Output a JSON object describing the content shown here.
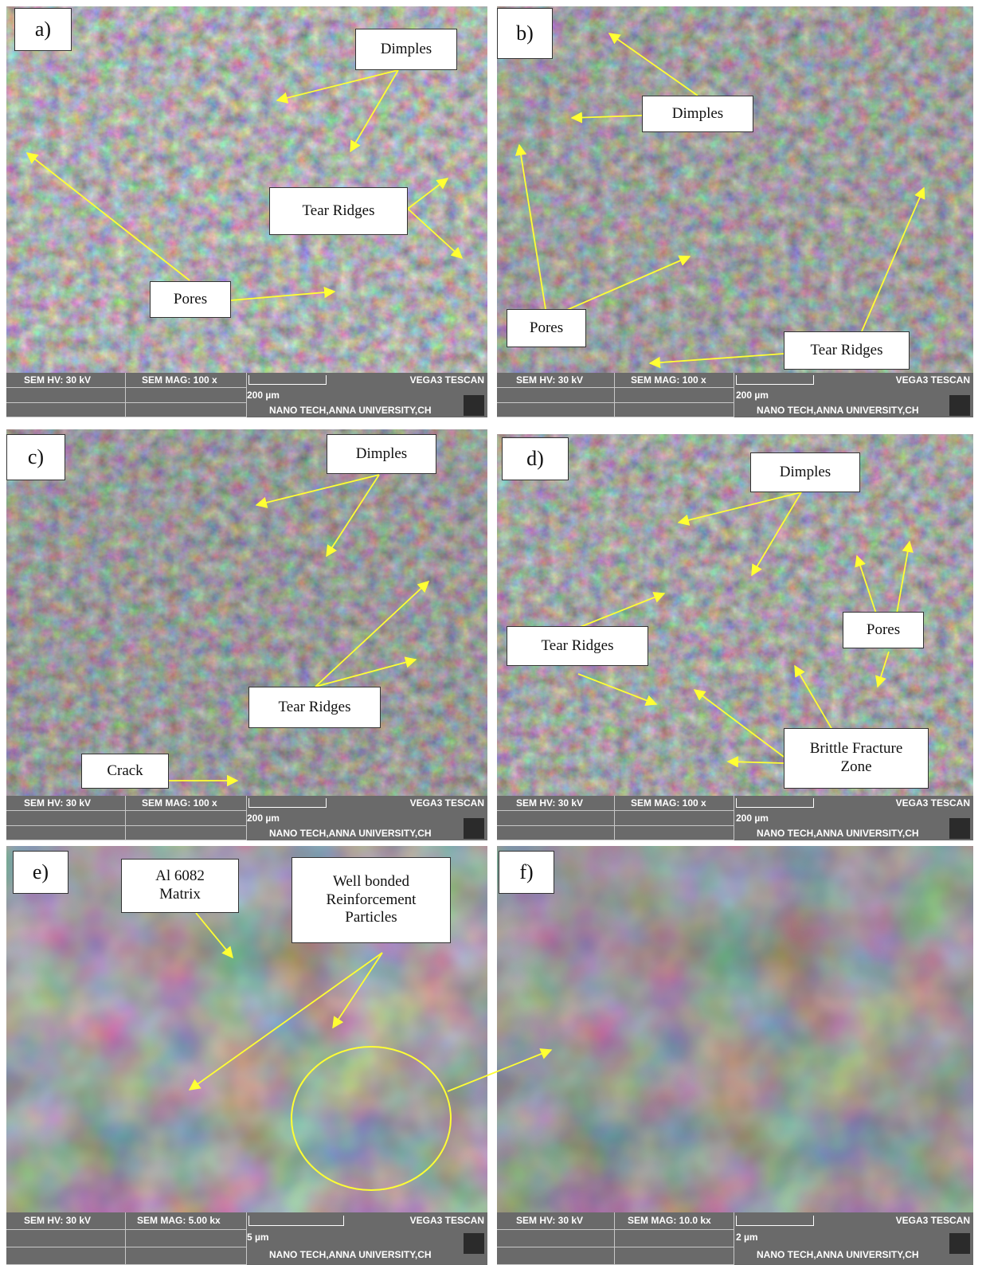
{
  "panels": {
    "a": {
      "letter": "a)",
      "hv": "SEM HV: 30 kV",
      "mag": "SEM MAG: 100 x",
      "scale": "200 µm",
      "brand": "VEGA3 TESCAN",
      "lab": "NANO TECH,ANNA UNIVERSITY,CH",
      "labels": {
        "dimples": "Dimples",
        "tear_ridges": "Tear Ridges",
        "pores": "Pores"
      }
    },
    "b": {
      "letter": "b)",
      "hv": "SEM HV: 30 kV",
      "mag": "SEM MAG: 100 x",
      "scale": "200 µm",
      "brand": "VEGA3 TESCAN",
      "lab": "NANO TECH,ANNA UNIVERSITY,CH",
      "labels": {
        "dimples": "Dimples",
        "pores": "Pores",
        "tear_ridges": "Tear Ridges"
      }
    },
    "c": {
      "letter": "c)",
      "hv": "SEM HV: 30 kV",
      "mag": "SEM MAG: 100 x",
      "scale": "200 µm",
      "brand": "VEGA3 TESCAN",
      "lab": "NANO TECH,ANNA UNIVERSITY,CH",
      "labels": {
        "dimples": "Dimples",
        "tear_ridges": "Tear Ridges",
        "crack": "Crack"
      }
    },
    "d": {
      "letter": "d)",
      "hv": "SEM HV: 30 kV",
      "mag": "SEM MAG: 100 x",
      "scale": "200 µm",
      "brand": "VEGA3 TESCAN",
      "lab": "NANO TECH,ANNA UNIVERSITY,CH",
      "labels": {
        "dimples": "Dimples",
        "tear_ridges": "Tear Ridges",
        "pores": "Pores",
        "brittle_1": "Brittle Fracture",
        "brittle_2": "Zone"
      }
    },
    "e": {
      "letter": "e)",
      "hv": "SEM HV: 30 kV",
      "mag": "SEM MAG: 5.00 kx",
      "scale": "5 µm",
      "brand": "VEGA3 TESCAN",
      "lab": "NANO TECH,ANNA UNIVERSITY,CH",
      "labels": {
        "matrix_1": "Al 6082",
        "matrix_2": "Matrix",
        "reinf_1": "Well bonded",
        "reinf_2": "Reinforcement",
        "reinf_3": "Particles"
      }
    },
    "f": {
      "letter": "f)",
      "hv": "SEM HV: 30 kV",
      "mag": "SEM MAG: 10.0 kx",
      "scale": "2 µm",
      "brand": "VEGA3 TESCAN",
      "lab": "NANO TECH,ANNA UNIVERSITY,CH"
    }
  },
  "colors": {
    "annotation": "#ffff33",
    "sem_light": "#cfcfcf",
    "sem_dark": "#2e2e2e",
    "bar": "#6a6a6a"
  }
}
